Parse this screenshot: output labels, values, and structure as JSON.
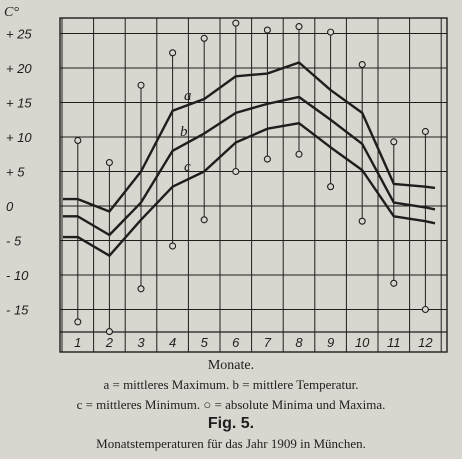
{
  "chart_data": {
    "type": "line",
    "unit_label": "C°",
    "xlabel": "Monate.",
    "x": [
      "1",
      "2",
      "3",
      "4",
      "5",
      "6",
      "7",
      "8",
      "9",
      "10",
      "11",
      "12"
    ],
    "yticks": [
      "+ 25",
      "+ 20",
      "+ 15",
      "+ 10",
      "+ 5",
      "0",
      "- 5",
      "- 10",
      "- 15"
    ],
    "ytick_values": [
      25,
      20,
      15,
      10,
      5,
      0,
      -5,
      -10,
      -15
    ],
    "ylim": [
      -19,
      27.5
    ],
    "grid": true,
    "series": [
      {
        "name": "a",
        "values": [
          1.0,
          -0.8,
          5.0,
          13.8,
          15.5,
          18.8,
          19.2,
          20.8,
          16.8,
          13.5,
          3.2,
          2.8
        ],
        "line_width": 2.4
      },
      {
        "name": "b",
        "values": [
          -1.5,
          -4.2,
          0.5,
          8.0,
          10.5,
          13.5,
          14.8,
          15.8,
          12.5,
          9.0,
          0.5,
          -0.2
        ],
        "line_width": 2.4
      },
      {
        "name": "c",
        "values": [
          -4.5,
          -7.2,
          -2.0,
          2.8,
          5.0,
          9.2,
          11.2,
          12.0,
          8.5,
          5.2,
          -1.5,
          -2.2
        ],
        "line_width": 2.4
      }
    ],
    "absolute": {
      "max": [
        9.5,
        6.3,
        17.5,
        22.2,
        24.3,
        26.5,
        25.5,
        26.0,
        25.2,
        20.5,
        9.3,
        10.8
      ],
      "min": [
        -16.8,
        -18.2,
        -12.0,
        -5.8,
        -2.0,
        5.0,
        6.8,
        7.5,
        2.8,
        -2.2,
        -11.2,
        -15.0
      ]
    },
    "legend": {
      "line1": "a = mittleres Maximum.  b = mittlere Temperatur.",
      "line2": "c = mittleres Minimum.  ○ = absolute Minima und Maxima."
    },
    "figure_label": "Fig. 5.",
    "figure_title": "Monatstemperaturen für das Jahr 1909 in München."
  },
  "colors": {
    "background": "#d9d6cf",
    "ink": "#1e1e1e"
  }
}
